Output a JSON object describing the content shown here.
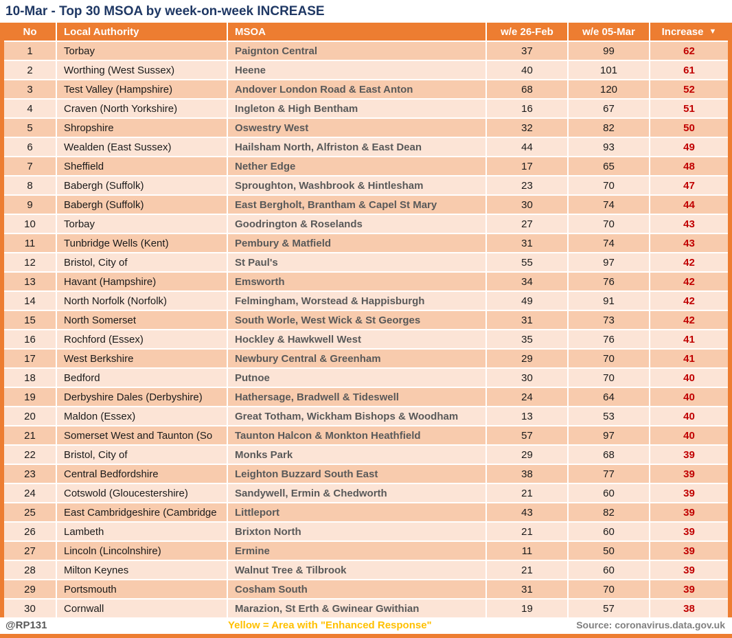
{
  "title": "10-Mar - Top 30 MSOA by week-on-week INCREASE",
  "colors": {
    "accent": "#ED7D31",
    "row_odd": "#F8CBAD",
    "row_even": "#FCE4D6",
    "increase_red": "#C00000",
    "title_navy": "#1F3864",
    "note_yellow": "#FFC000",
    "text_gray": "#595959"
  },
  "sort_icon": "▼",
  "chart_data": {
    "type": "table",
    "title": "10-Mar - Top 30 MSOA by week-on-week INCREASE",
    "columns": [
      "No",
      "Local Authority",
      "MSOA",
      "w/e 26-Feb",
      "w/e 05-Mar",
      "Increase"
    ],
    "sorted_by": "Increase descending",
    "rows": [
      [
        1,
        "Torbay",
        "Paignton Central",
        37,
        99,
        62
      ],
      [
        2,
        "Worthing (West Sussex)",
        "Heene",
        40,
        101,
        61
      ],
      [
        3,
        "Test Valley (Hampshire)",
        "Andover London Road & East Anton",
        68,
        120,
        52
      ],
      [
        4,
        "Craven (North Yorkshire)",
        "Ingleton & High Bentham",
        16,
        67,
        51
      ],
      [
        5,
        "Shropshire",
        "Oswestry West",
        32,
        82,
        50
      ],
      [
        6,
        "Wealden (East Sussex)",
        "Hailsham North, Alfriston & East Dean",
        44,
        93,
        49
      ],
      [
        7,
        "Sheffield",
        "Nether Edge",
        17,
        65,
        48
      ],
      [
        8,
        "Babergh (Suffolk)",
        "Sproughton, Washbrook & Hintlesham",
        23,
        70,
        47
      ],
      [
        9,
        "Babergh (Suffolk)",
        "East Bergholt, Brantham & Capel St Mary",
        30,
        74,
        44
      ],
      [
        10,
        "Torbay",
        "Goodrington & Roselands",
        27,
        70,
        43
      ],
      [
        11,
        "Tunbridge Wells (Kent)",
        "Pembury & Matfield",
        31,
        74,
        43
      ],
      [
        12,
        "Bristol, City of",
        "St Paul's",
        55,
        97,
        42
      ],
      [
        13,
        "Havant (Hampshire)",
        "Emsworth",
        34,
        76,
        42
      ],
      [
        14,
        "North Norfolk (Norfolk)",
        "Felmingham, Worstead & Happisburgh",
        49,
        91,
        42
      ],
      [
        15,
        "North Somerset",
        "South Worle, West Wick & St Georges",
        31,
        73,
        42
      ],
      [
        16,
        "Rochford (Essex)",
        "Hockley & Hawkwell West",
        35,
        76,
        41
      ],
      [
        17,
        "West Berkshire",
        "Newbury Central & Greenham",
        29,
        70,
        41
      ],
      [
        18,
        "Bedford",
        "Putnoe",
        30,
        70,
        40
      ],
      [
        19,
        "Derbyshire Dales (Derbyshire)",
        "Hathersage, Bradwell & Tideswell",
        24,
        64,
        40
      ],
      [
        20,
        "Maldon (Essex)",
        "Great Totham, Wickham Bishops & Woodham",
        13,
        53,
        40
      ],
      [
        21,
        "Somerset West and Taunton (So",
        "Taunton Halcon & Monkton Heathfield",
        57,
        97,
        40
      ],
      [
        22,
        "Bristol, City of",
        "Monks Park",
        29,
        68,
        39
      ],
      [
        23,
        "Central Bedfordshire",
        "Leighton Buzzard South East",
        38,
        77,
        39
      ],
      [
        24,
        "Cotswold (Gloucestershire)",
        "Sandywell, Ermin & Chedworth",
        21,
        60,
        39
      ],
      [
        25,
        "East Cambridgeshire (Cambridge",
        "Littleport",
        43,
        82,
        39
      ],
      [
        26,
        "Lambeth",
        "Brixton North",
        21,
        60,
        39
      ],
      [
        27,
        "Lincoln (Lincolnshire)",
        "Ermine",
        11,
        50,
        39
      ],
      [
        28,
        "Milton Keynes",
        "Walnut Tree & Tilbrook",
        21,
        60,
        39
      ],
      [
        29,
        "Portsmouth",
        "Cosham South",
        31,
        70,
        39
      ],
      [
        30,
        "Cornwall",
        "Marazion, St Erth & Gwinear Gwithian",
        19,
        57,
        38
      ]
    ]
  },
  "footer": {
    "handle": "@RP131",
    "note": "Yellow = Area with \"Enhanced Response\"",
    "source": "Source: coronavirus.data.gov.uk"
  }
}
